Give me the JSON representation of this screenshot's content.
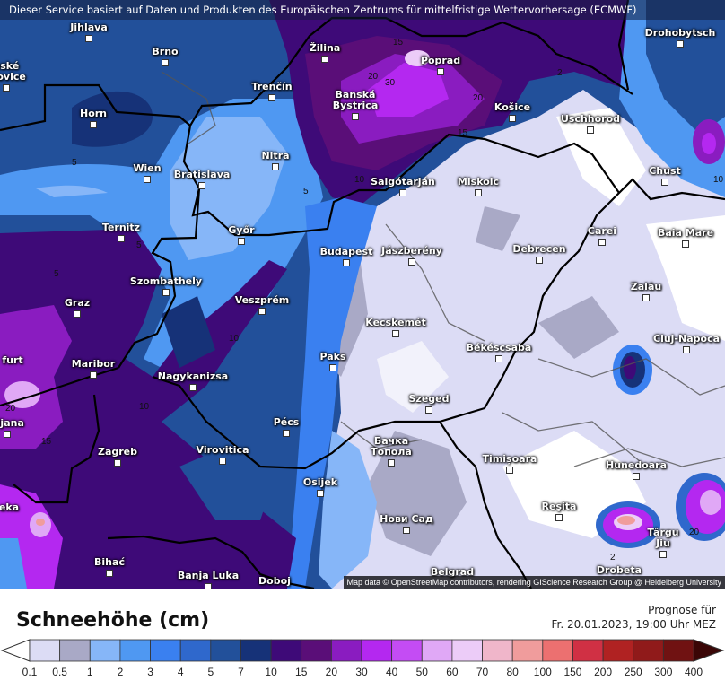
{
  "banner": "Dieser Service basiert auf Daten und Produkten des Europäischen Zentrums für mittelfristige Wettervorhersage (ECMWF)",
  "attribution": "Map data © OpenStreetMap contributors, rendering GIScience Research Group @ Heidelberg University",
  "map": {
    "cities": [
      "Jihlava",
      "Brno",
      "eské\nejovice",
      "Žilina",
      "Poprad",
      "Banská\nBystrica",
      "Trenčín",
      "Horn",
      "Košice",
      "Uschhorod",
      "Drohobytsch",
      "Wien",
      "Bratislava",
      "Nitra",
      "Salgótarján",
      "Miskolc",
      "Chust",
      "Ternitz",
      "Győr",
      "Budapest",
      "Jászberény",
      "Debrecen",
      "Carei",
      "Baia Mare",
      "Szombathely",
      "Zalău",
      "Graz",
      "Veszprém",
      "Kecskemét",
      "Cluj-Napoca",
      "Paks",
      "Maribor",
      "Nagykanizsa",
      "Békéscsaba",
      "furt",
      "oljana",
      "Szeged",
      "Pécs",
      "Zagreb",
      "Virovitica",
      "Бачка\nТопола",
      "Timișoara",
      "Hunedoara",
      "Osijek",
      "eka",
      "Нови Сад",
      "Reşita",
      "Târgu\nJiu",
      "Bihać",
      "Banja Luka",
      "Doboj",
      "Belgrad",
      "Drobeta"
    ],
    "contour_labels": [
      "5",
      "5",
      "5",
      "5",
      "10",
      "10",
      "10",
      "10",
      "15",
      "15",
      "15",
      "20",
      "20",
      "30",
      "2",
      "2",
      "20",
      "20"
    ]
  },
  "legend": {
    "title": "Schneehöhe (cm)",
    "forecast_label": "Prognose für",
    "forecast_time": "Fr. 20.01.2023, 19:00 Uhr MEZ",
    "ticks": [
      "0.1",
      "0.5",
      "1",
      "2",
      "3",
      "4",
      "5",
      "7",
      "10",
      "15",
      "20",
      "30",
      "40",
      "50",
      "60",
      "70",
      "80",
      "100",
      "150",
      "200",
      "250",
      "300",
      "400"
    ],
    "colors": [
      "#dcdcf5",
      "#a9a9c6",
      "#86b6f8",
      "#4f98f2",
      "#3a80f0",
      "#2f68cc",
      "#22509a",
      "#163278",
      "#3e0a78",
      "#5a0e78",
      "#8a1cc0",
      "#b428f0",
      "#c44cf4",
      "#e0a8f6",
      "#ecccf8",
      "#f0b6ca",
      "#f09c9c",
      "#ec7070",
      "#d03044",
      "#b02222",
      "#901a1a",
      "#701212"
    ],
    "under_color": "#ffffff",
    "over_color": "#3a0606"
  }
}
